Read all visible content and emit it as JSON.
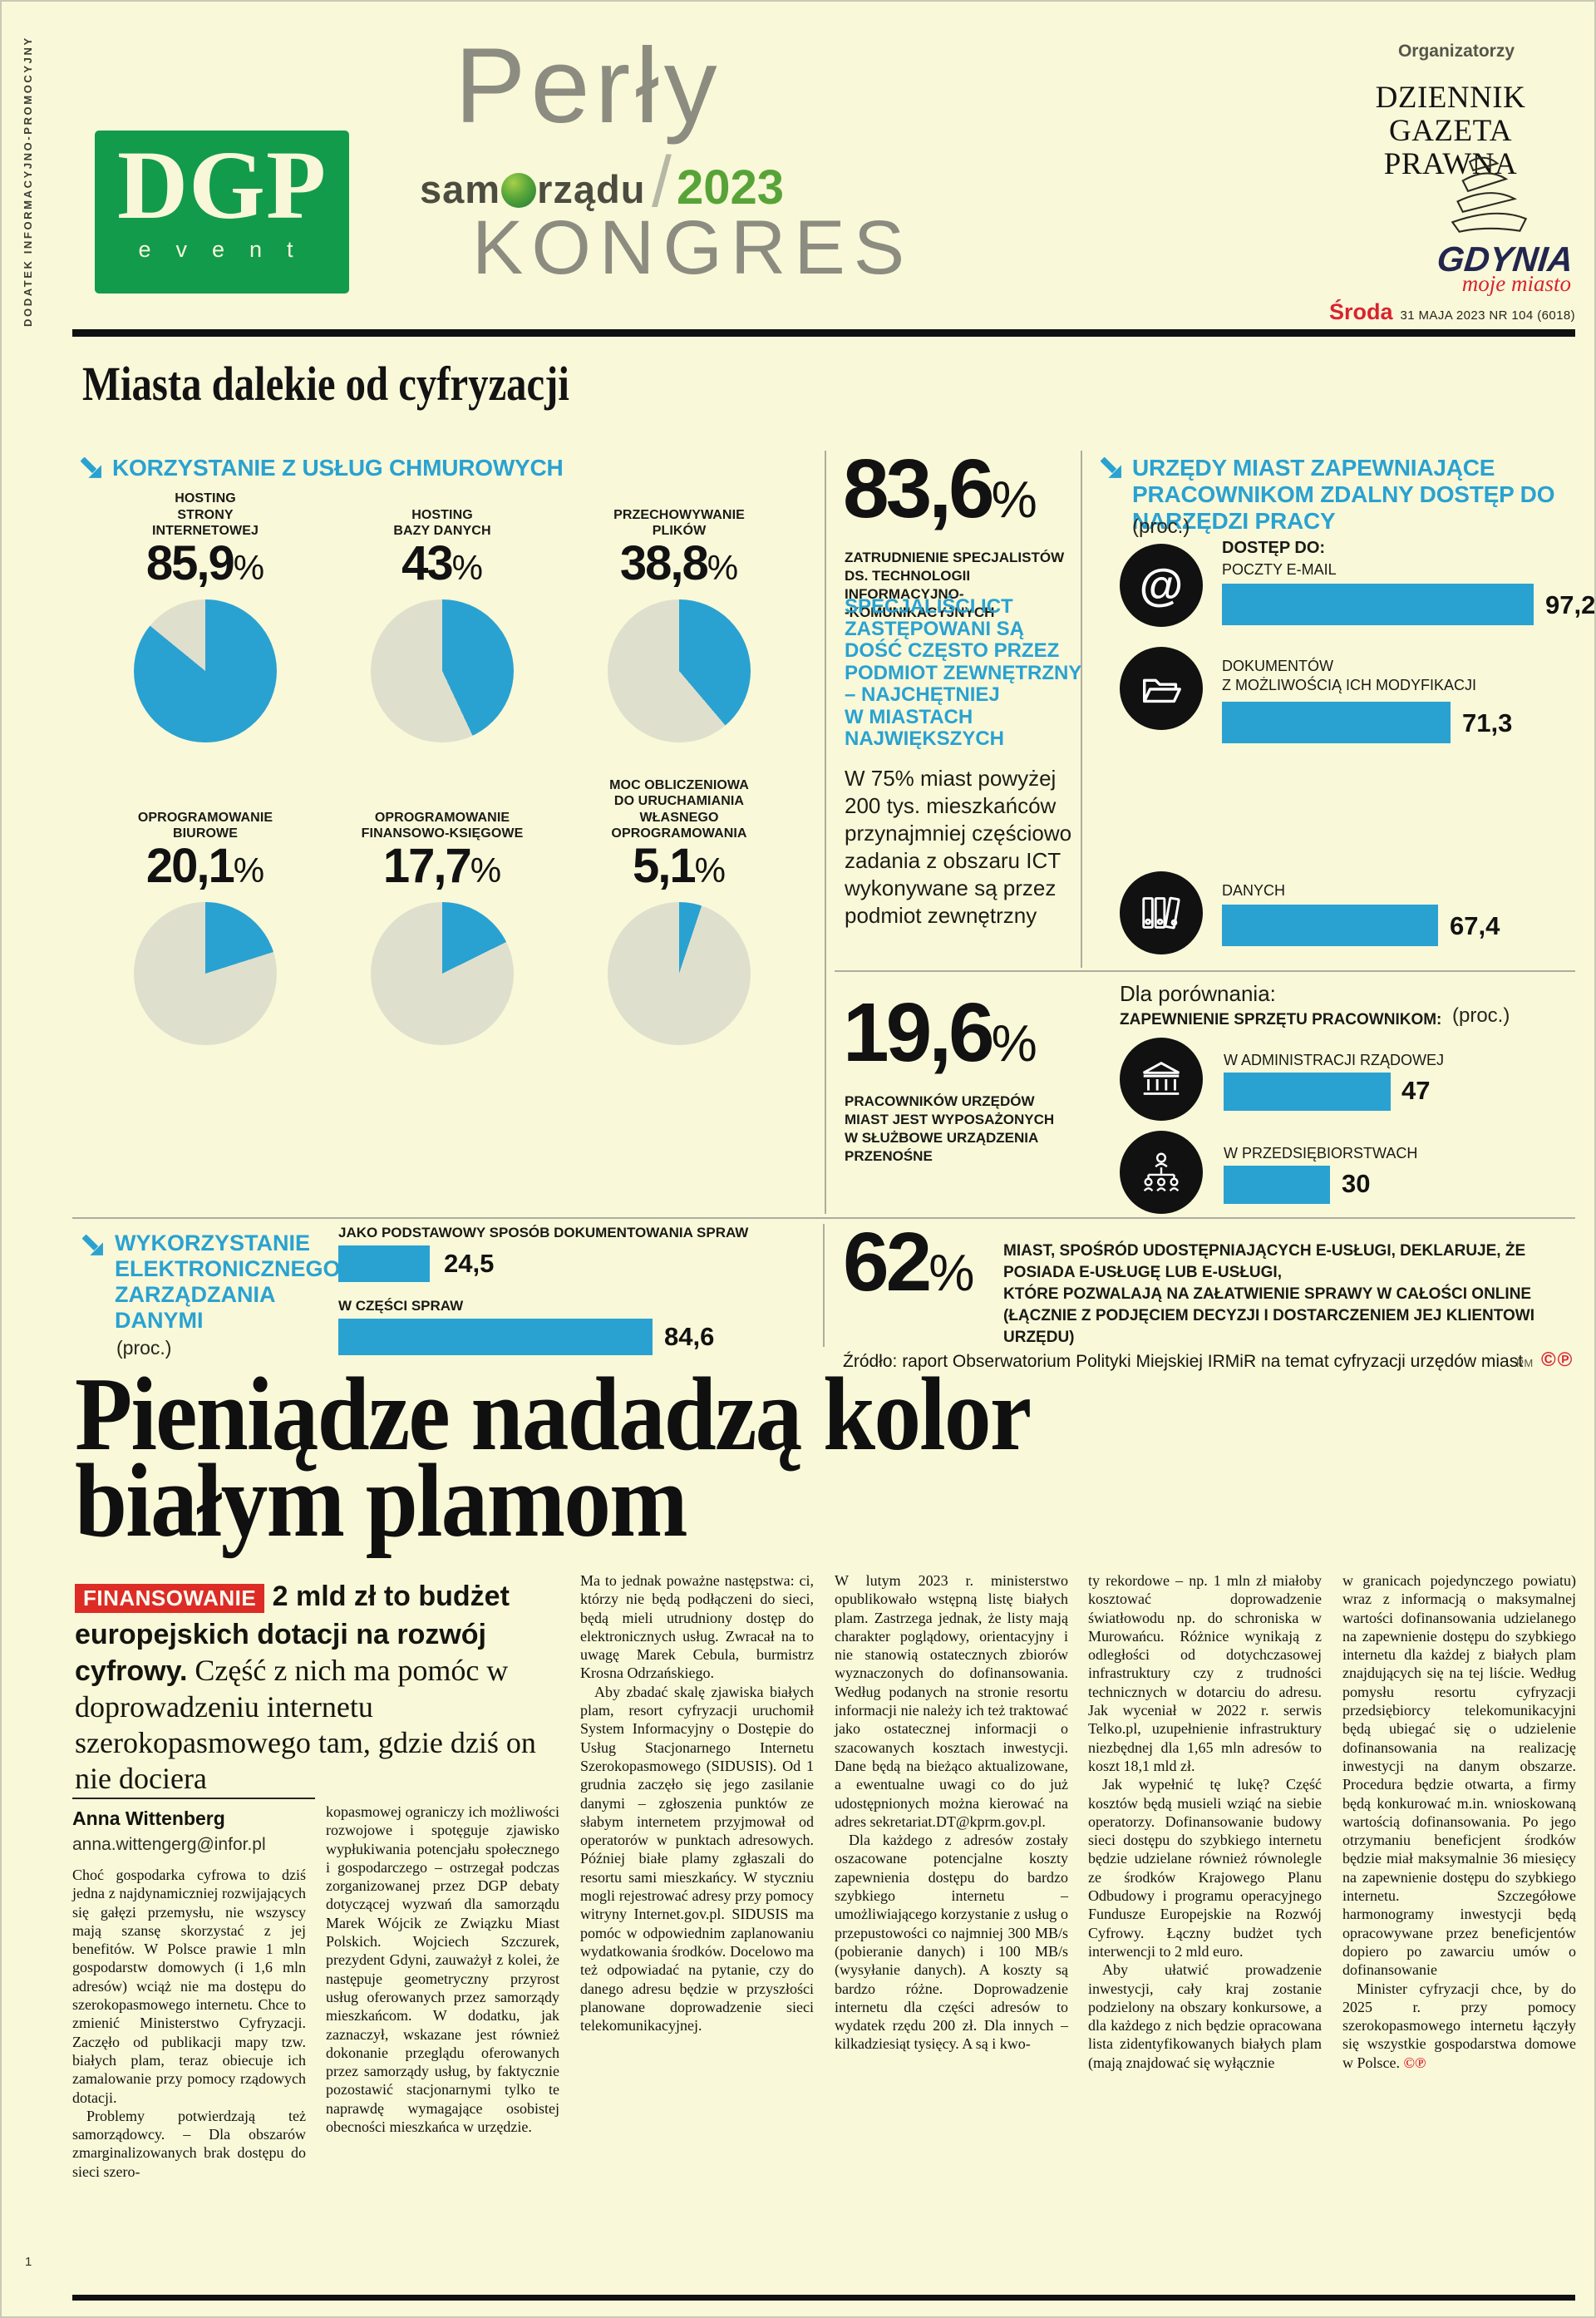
{
  "theme": {
    "chart_blue": "#29a2d1",
    "pie_rest": "#dfdfcd",
    "brand_green": "#129b4b",
    "accent_red": "#d9232e",
    "paper": "#f9f8d9"
  },
  "units": {
    "percent": "%"
  },
  "page": {
    "sidebar_vertical_text": "DODATEK INFORMACYJNO-PROMOCYJNY",
    "page_number": "1"
  },
  "header": {
    "dgp_logo": {
      "letters": "DGP",
      "sub": "event"
    },
    "event_logo": {
      "perly": "Perły",
      "samorzadu_pre": "sam",
      "samorzadu_post": "rządu",
      "slash": "/",
      "year": "2023",
      "kongres": "KONGRES"
    },
    "organizers": {
      "label": "Organizatorzy",
      "newspaper_line1": "DZIENNIK",
      "newspaper_line2": "GAZETA PRAWNA",
      "city_logo": "GDYNIA",
      "city_tagline": "moje miasto"
    },
    "issue": {
      "day": "Środa",
      "date_info": "31 MAJA 2023 NR 104 (6018)"
    }
  },
  "infographic": {
    "title": "Miasta dalekie od cyfryzacji",
    "cloud_section": {
      "header": "KORZYSTANIE Z USŁUG CHMUROWYCH",
      "pies": [
        {
          "label": "HOSTING\nSTRONY\nINTERNETOWEJ",
          "value": 85.9,
          "value_label": "85,9"
        },
        {
          "label": "HOSTING\nBAZY DANYCH",
          "value": 43,
          "value_label": "43"
        },
        {
          "label": "PRZECHOWYWANIE\nPLIKÓW",
          "value": 38.8,
          "value_label": "38,8"
        },
        {
          "label": "OPROGRAMOWANIE\nBIUROWE",
          "value": 20.1,
          "value_label": "20,1"
        },
        {
          "label": "OPROGRAMOWANIE\nFINANSOWO-KSIĘGOWE",
          "value": 17.7,
          "value_label": "17,7"
        },
        {
          "label": "MOC OBLICZENIOWA\nDO URUCHAMIANIA\nWŁASNEGO OPROGRAMOWANIA",
          "value": 5.1,
          "value_label": "5,1"
        }
      ]
    },
    "ict_employment": {
      "value": 83.6,
      "value_label": "83,6",
      "caption": "ZATRUDNIENIE SPECJALISTÓW\nDS. TECHNOLOGII INFORMACYJNO-\n-KOMUNIKACYJNYCH",
      "highlight": "SPECJALIŚCI ICT\nZASTĘPOWANI SĄ\nDOŚĆ CZĘSTO PRZEZ\nPODMIOT ZEWNĘTRZNY\n– NAJCHĘTNIEJ\nW MIASTACH\nNAJWIĘKSZYCH",
      "note": "W 75% miast powyżej 200 tys. mieszkańców przynajmniej częściowo zadania z obszaru ICT wykonywane są przez podmiot zewnętrzny"
    },
    "remote_access": {
      "header": "URZĘDY MIAST ZAPEWNIAJĄCE PRACOWNIKOM ZDALNY DOSTĘP DO NARZĘDZI PRACY",
      "unit": "(proc.)",
      "intro": "DOSTĘP DO:",
      "bars": [
        {
          "label": "POCZTY E-MAIL",
          "value": 97.2,
          "value_label": "97,2",
          "icon": "at"
        },
        {
          "label": "DOKUMENTÓW\nZ MOŻLIWOŚCIĄ ICH MODYFIKACJI",
          "value": 71.3,
          "value_label": "71,3",
          "icon": "folder"
        },
        {
          "label": "DANYCH",
          "value": 67.4,
          "value_label": "67,4",
          "icon": "binders"
        }
      ]
    },
    "mobile_devices": {
      "value": 19.6,
      "value_label": "19,6",
      "caption": "PRACOWNIKÓW URZĘDÓW\nMIAST JEST WYPOSAŻONYCH\nW SŁUŻBOWE URZĄDZENIA\nPRZENOŚNE"
    },
    "comparison": {
      "intro": "Dla porównania:",
      "header": "ZAPEWNIENIE SPRZĘTU PRACOWNIKOM:",
      "unit": "(proc.)",
      "bars": [
        {
          "label": "W ADMINISTRACJI RZĄDOWEJ",
          "value": 47,
          "value_label": "47",
          "icon": "government"
        },
        {
          "label": "W PRZEDSIĘBIORSTWACH",
          "value": 30,
          "value_label": "30",
          "icon": "organization"
        }
      ]
    },
    "edm": {
      "header": "WYKORZYSTANIE\nELEKTRONICZNEGO\nZARZĄDZANIA\nDANYMI",
      "unit": "(proc.)",
      "bars": [
        {
          "label": "JAKO PODSTAWOWY SPOSÓB DOKUMENTOWANIA SPRAW",
          "value": 24.5,
          "value_label": "24,5"
        },
        {
          "label": "W CZĘŚCI SPRAW",
          "value": 84.6,
          "value_label": "84,6"
        }
      ]
    },
    "eservices": {
      "value": 62,
      "value_label": "62",
      "text": "MIAST, SPOŚRÓD UDOSTĘPNIAJĄCYCH E-USŁUGI, DEKLARUJE, ŻE POSIADA E-USŁUGĘ LUB E-USŁUGI,\nKTÓRE POZWALAJĄ NA ZAŁATWIENIE SPRAWY W CAŁOŚCI ONLINE\n(ŁĄCZNIE Z PODJĘCIEM DECYZJI I DOSTARCZENIEM JEJ KLIENTOWI URZĘDU)"
    },
    "source": "Źródło: raport Obserwatorium Polityki Miejskiej IRMiR na temat cyfryzacji urzędów miast",
    "credit": "RM",
    "rights_mark": "©℗"
  },
  "article": {
    "headline": "Pieniądze nadadzą kolor\nbiałym plamom",
    "kicker": "FINANSOWANIE",
    "lead_bold": " 2 mld zł to budżet europejskich dotacji na rozwój cyfrowy.",
    "lead_rest": " Część z nich ma pomóc w doprowadzeniu internetu szerokopasmowego tam, gdzie dziś on nie dociera",
    "author": "Anna Wittenberg",
    "author_email": "anna.wittengerg@infor.pl",
    "end_mark": "©℗",
    "columns": [
      [
        "Choć gospodarka cyfrowa to dziś jedna z najdynamiczniej rozwijających się gałęzi przemysłu, nie wszyscy mają szansę skorzystać z jej benefitów. W Polsce prawie 1 mln gospodarstw domowych (i 1,6 mln adresów) wciąż nie ma dostępu do szerokopasmowego internetu. Chce to zmienić Ministerstwo Cyfryzacji. Zaczęło od publikacji mapy tzw. białych plam, teraz obiecuje ich zamalowanie przy pomocy rządowych dotacji.",
        "Problemy potwierdzają też samorządowcy. – Dla obszarów zmarginalizowanych brak dostępu do sieci szero-"
      ],
      [
        "kopasmowej ograniczy ich możliwości rozwojowe i spotęguje zjawisko wypłukiwania potencjału społecznego i gospodarczego – ostrzegał podczas zorganizowanej przez DGP debaty dotyczącej wyzwań dla samorządu Marek Wójcik ze Związku Miast Polskich. Wojciech Szczurek, prezydent Gdyni, zauważył z kolei, że następuje geometryczny przyrost usług oferowanych przez samorządy mieszkańcom. W dodatku, jak zaznaczył, wskazane jest również dokonanie przeglądu oferowanych przez samorządy usług, by faktycznie pozostawić stacjonarnymi tylko te naprawdę wymagające osobistej obecności mieszkańca w urzędzie."
      ],
      [
        "Ma to jednak poważne następstwa: ci, którzy nie będą podłączeni do sieci, będą mieli utrudniony dostęp do elektronicznych usług. Zwracał na to uwagę Marek Cebula, burmistrz Krosna Odrzańskiego.",
        "Aby zbadać skalę zjawiska białych plam, resort cyfryzacji uruchomił System Informacyjny o Dostępie do Usług Stacjonarnego Internetu Szerokopasmowego (SIDUSIS). Od 1 grudnia zaczęło się jego zasilanie danymi – zgłoszenia punktów ze słabym internetem przyjmował od operatorów w punktach adresowych. Później białe plamy zgłaszali do resortu sami mieszkańcy. W styczniu mogli rejestrować adresy przy pomocy witryny Internet.gov.pl. SIDUSIS ma pomóc w odpowiednim zaplanowaniu wydatkowania środków. Docelowo ma też odpowiadać na pytanie, czy do danego adresu będzie w przyszłości planowane doprowadzenie sieci telekomunikacyjnej."
      ],
      [
        "W lutym 2023 r. ministerstwo opublikowało wstępną listę białych plam. Zastrzega jednak, że listy mają charakter poglądowy, orientacyjny i nie stanowią ostatecznych zbiorów wyznaczonych do dofinansowania. Według podanych na stronie resortu informacji nie należy ich też traktować jako ostatecznej informacji o szacowanych kosztach inwestycji. Dane będą na bieżąco aktualizowane, a ewentualne uwagi co do już udostępnionych można kierować na adres sekretariat.DT@kprm.gov.pl.",
        "Dla każdego z adresów zostały oszacowane potencjalne koszty zapewnienia dostępu do bardzo szybkiego internetu – umożliwiającego korzystanie z usług o przepustowości co najmniej 300 MB/s (pobieranie danych) i 100 MB/s (wysyłanie danych). A koszty są bardzo różne. Doprowadzenie internetu dla części adresów to wydatek rzędu 200 zł. Dla innych – kilkadziesiąt tysięcy. A są i kwo-"
      ],
      [
        "ty rekordowe – np. 1 mln zł miałoby kosztować doprowadzenie światłowodu np. do schroniska w Murowańcu. Różnice wynikają z odległości od dotychczasowej infrastruktury czy z trudności technicznych w dotarciu do adresu. Jak wyceniał w 2022 r. serwis Telko.pl, uzupełnienie infrastruktury niezbędnej dla 1,65 mln adresów to koszt 18,1 mld zł.",
        "Jak wypełnić tę lukę? Część kosztów będą musieli wziąć na siebie operatorzy. Dofinansowanie budowy sieci dostępu do szybkiego internetu będzie udzielane również równolegle ze środków Krajowego Planu Odbudowy i programu operacyjnego Fundusze Europejskie na Rozwój Cyfrowy. Łączny budżet tych interwencji to 2 mld euro.",
        "Aby ułatwić prowadzenie inwestycji, cały kraj zostanie podzielony na obszary konkursowe, a dla każdego z nich będzie opracowana lista zidentyfikowanych białych plam (mają znajdować się wyłącznie"
      ],
      [
        "w granicach pojedynczego powiatu) wraz z informacją o maksymalnej wartości dofinansowania udzielanego na zapewnienie dostępu do szybkiego internetu dla każdej z białych plam znajdujących się na tej liście. Według pomysłu resortu cyfryzacji przedsiębiorcy telekomunikacyjni będą ubiegać się o udzielenie dofinansowania na realizację inwestycji na danym obszarze. Procedura będzie otwarta, a firmy będą konkurować m.in. wnioskowaną wartością dofinansowania. Po jego otrzymaniu beneficjent środków będzie miał maksymalnie 36 miesięcy na zapewnienie dostępu do szybkiego internetu. Szczegółowe harmonogramy inwestycji będą opracowywane przez beneficjentów dopiero po zawarciu umów o dofinansowanie",
        "Minister cyfryzacji chce, by do 2025 r. przy pomocy szerokopasmowego internetu łączyły się wszystkie gospodarstwa domowe w Polsce."
      ]
    ]
  },
  "chart_data": [
    {
      "type": "pie",
      "title": "KORZYSTANIE Z USŁUG CHMUROWYCH",
      "categories": [
        "HOSTING STRONY INTERNETOWEJ",
        "HOSTING BAZY DANYCH",
        "PRZECHOWYWANIE PLIKÓW",
        "OPROGRAMOWANIE BIUROWE",
        "OPROGRAMOWANIE FINANSOWO-KSIĘGOWE",
        "MOC OBLICZENIOWA DO URUCHAMIANIA WŁASNEGO OPROGRAMOWANIA"
      ],
      "values": [
        85.9,
        43,
        38.8,
        20.1,
        17.7,
        5.1
      ],
      "note": "six separate percentage pies, blue share on cream/grey remainder"
    },
    {
      "type": "bar",
      "title": "URZĘDY MIAST ZAPEWNIAJĄCE PRACOWNIKOM ZDALNY DOSTĘP DO NARZĘDZI PRACY (proc.)",
      "categories": [
        "POCZTY E-MAIL",
        "DOKUMENTÓW Z MOŻLIWOŚCIĄ ICH MODYFIKACJI",
        "DANYCH"
      ],
      "values": [
        97.2,
        71.3,
        67.4
      ],
      "orientation": "horizontal"
    },
    {
      "type": "bar",
      "title": "ZAPEWNIENIE SPRZĘTU PRACOWNIKOM (proc.)",
      "categories": [
        "W ADMINISTRACJI RZĄDOWEJ",
        "W PRZEDSIĘBIORSTWACH"
      ],
      "values": [
        47,
        30
      ],
      "orientation": "horizontal"
    },
    {
      "type": "bar",
      "title": "WYKORZYSTANIE ELEKTRONICZNEGO ZARZĄDZANIA DANYMI (proc.)",
      "categories": [
        "JAKO PODSTAWOWY SPOSÓB DOKUMENTOWANIA SPRAW",
        "W CZĘŚCI SPRAW"
      ],
      "values": [
        24.5,
        84.6
      ],
      "orientation": "horizontal"
    },
    {
      "type": "table",
      "title": "single statistics",
      "categories": [
        "ZATRUDNIENIE SPECJALISTÓW ICT",
        "PRACOWNICY Z URZĄDZENIAMI PRZENOŚNYMI",
        "MIASTA Z PEŁNĄ E-USŁUGĄ ONLINE"
      ],
      "values": [
        83.6,
        19.6,
        62
      ]
    }
  ]
}
